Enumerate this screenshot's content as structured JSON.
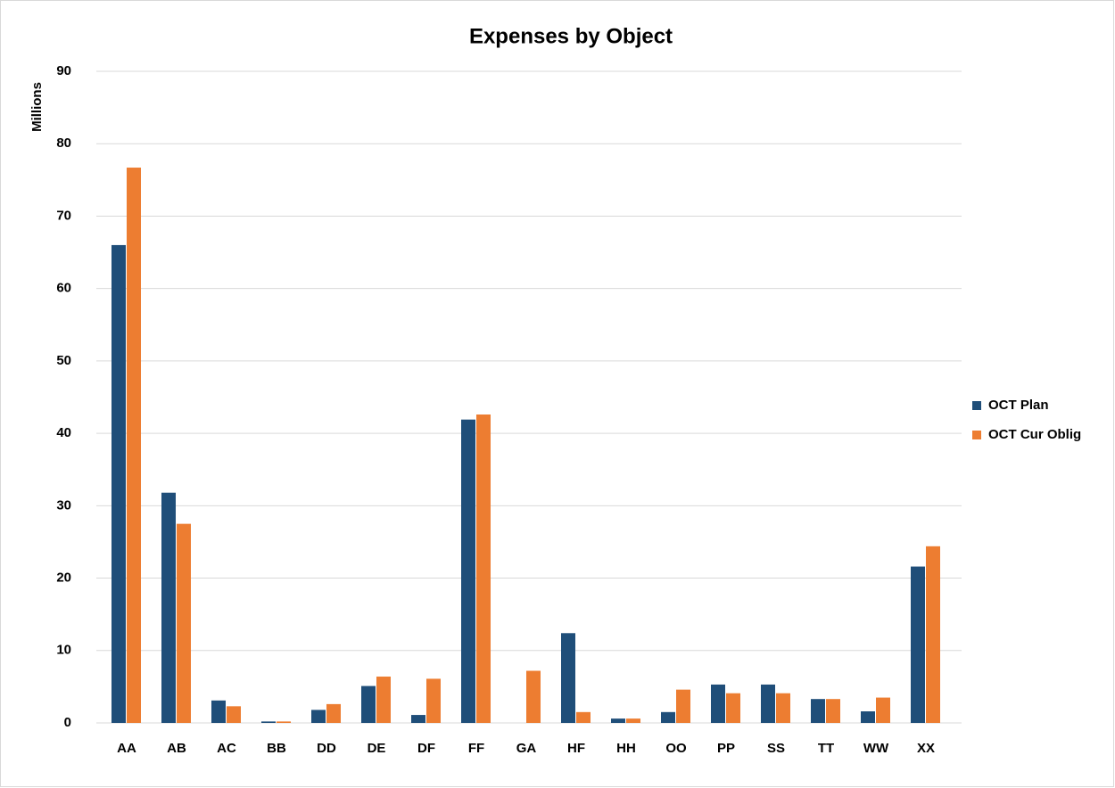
{
  "chart_data": {
    "type": "bar",
    "title": "Expenses by Object",
    "y_label": "Millions",
    "categories": [
      "AA",
      "AB",
      "AC",
      "BB",
      "DD",
      "DE",
      "DF",
      "FF",
      "GA",
      "HF",
      "HH",
      "OO",
      "PP",
      "SS",
      "TT",
      "WW",
      "XX"
    ],
    "series": [
      {
        "name": "OCT Plan",
        "color": "#1f4e79",
        "values": [
          66,
          31.8,
          3.1,
          0.2,
          1.8,
          5.1,
          1.1,
          41.9,
          0,
          12.4,
          0.6,
          1.5,
          5.3,
          5.3,
          3.3,
          1.6,
          21.6
        ]
      },
      {
        "name": "OCT Cur Oblig",
        "color": "#ed7d31",
        "values": [
          76.7,
          27.5,
          2.3,
          0.2,
          2.6,
          6.4,
          6.1,
          42.6,
          7.2,
          1.5,
          0.6,
          4.6,
          4.1,
          4.1,
          3.3,
          3.5,
          24.4
        ]
      }
    ],
    "ylim": [
      0,
      90
    ],
    "yticks": [
      0,
      10,
      20,
      30,
      40,
      50,
      60,
      70,
      80,
      90
    ],
    "grid": true,
    "legend": "right"
  }
}
